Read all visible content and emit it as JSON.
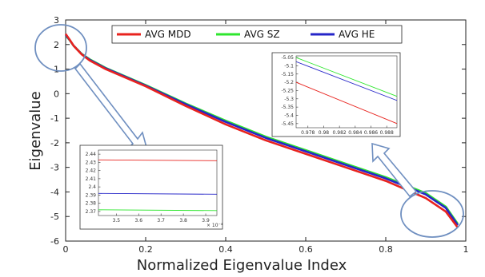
{
  "chart_data": {
    "type": "line",
    "xlabel": "Normalized Eigenvalue Index",
    "ylabel": "Eigenvalue",
    "xlim": [
      0,
      1
    ],
    "ylim": [
      -6,
      3
    ],
    "x_ticks": [
      "0",
      "0.2",
      "0.4",
      "0.6",
      "0.8",
      "1"
    ],
    "y_ticks": [
      "3",
      "2",
      "1",
      "0",
      "-1",
      "-2",
      "-3",
      "-4",
      "-5",
      "-6"
    ],
    "legend": {
      "placement": "top-center"
    },
    "series": [
      {
        "name": "AVG MDD",
        "color": "#e8231e",
        "x": [
          0,
          0.01,
          0.02,
          0.04,
          0.06,
          0.1,
          0.2,
          0.3,
          0.4,
          0.5,
          0.6,
          0.7,
          0.8,
          0.9,
          0.95,
          0.98
        ],
        "y": [
          2.43,
          2.2,
          1.95,
          1.6,
          1.35,
          1.0,
          0.3,
          -0.5,
          -1.25,
          -1.9,
          -2.45,
          -3.0,
          -3.55,
          -4.25,
          -4.8,
          -5.45
        ]
      },
      {
        "name": "AVG SZ",
        "color": "#2ee62e",
        "x": [
          0,
          0.01,
          0.02,
          0.04,
          0.06,
          0.1,
          0.2,
          0.3,
          0.4,
          0.5,
          0.6,
          0.7,
          0.8,
          0.9,
          0.95,
          0.98
        ],
        "y": [
          2.37,
          2.18,
          1.95,
          1.62,
          1.4,
          1.05,
          0.35,
          -0.4,
          -1.1,
          -1.75,
          -2.3,
          -2.85,
          -3.4,
          -4.05,
          -4.6,
          -5.3
        ]
      },
      {
        "name": "AVG HE",
        "color": "#2525c8",
        "x": [
          0,
          0.01,
          0.02,
          0.04,
          0.06,
          0.1,
          0.2,
          0.3,
          0.4,
          0.5,
          0.6,
          0.7,
          0.8,
          0.9,
          0.95,
          0.98
        ],
        "y": [
          2.39,
          2.19,
          1.95,
          1.61,
          1.38,
          1.03,
          0.33,
          -0.43,
          -1.15,
          -1.8,
          -2.35,
          -2.9,
          -3.45,
          -4.1,
          -4.65,
          -5.35
        ]
      }
    ],
    "insets": [
      {
        "position": "lower-left",
        "x_ticks": [
          "3.5",
          "3.6",
          "3.7",
          "3.8",
          "3.9"
        ],
        "x_exponent": "× 10⁻⁴",
        "y_ticks": [
          "2.44",
          "2.43",
          "2.42",
          "2.41",
          "2.4",
          "2.39",
          "2.38",
          "2.37"
        ],
        "xlim": [
          3.42,
          3.95
        ],
        "ylim": [
          2.365,
          2.445
        ],
        "series": [
          {
            "name": "AVG MDD",
            "x": [
              3.42,
              3.95
            ],
            "y": [
              2.433,
              2.432
            ]
          },
          {
            "name": "AVG SZ",
            "x": [
              3.42,
              3.95
            ],
            "y": [
              2.372,
              2.371
            ]
          },
          {
            "name": "AVG HE",
            "x": [
              3.42,
              3.95
            ],
            "y": [
              2.392,
              2.391
            ]
          }
        ]
      },
      {
        "position": "upper-right",
        "x_ticks": [
          "0.978",
          "0.98",
          "0.982",
          "0.984",
          "0.986",
          "0.988"
        ],
        "y_ticks": [
          "-5.05",
          "-5.1",
          "-5.15",
          "-5.2",
          "-5.25",
          "-5.3",
          "-5.35",
          "-5.4",
          "-5.45"
        ],
        "xlim": [
          0.9765,
          0.9893
        ],
        "ylim": [
          -5.475,
          -5.04
        ],
        "series": [
          {
            "name": "AVG MDD",
            "x": [
              0.9765,
              0.9893
            ],
            "y": [
              -5.2,
              -5.45
            ]
          },
          {
            "name": "AVG SZ",
            "x": [
              0.9765,
              0.9893
            ],
            "y": [
              -5.05,
              -5.285
            ]
          },
          {
            "name": "AVG HE",
            "x": [
              0.9765,
              0.9893
            ],
            "y": [
              -5.075,
              -5.31
            ]
          }
        ]
      }
    ]
  }
}
